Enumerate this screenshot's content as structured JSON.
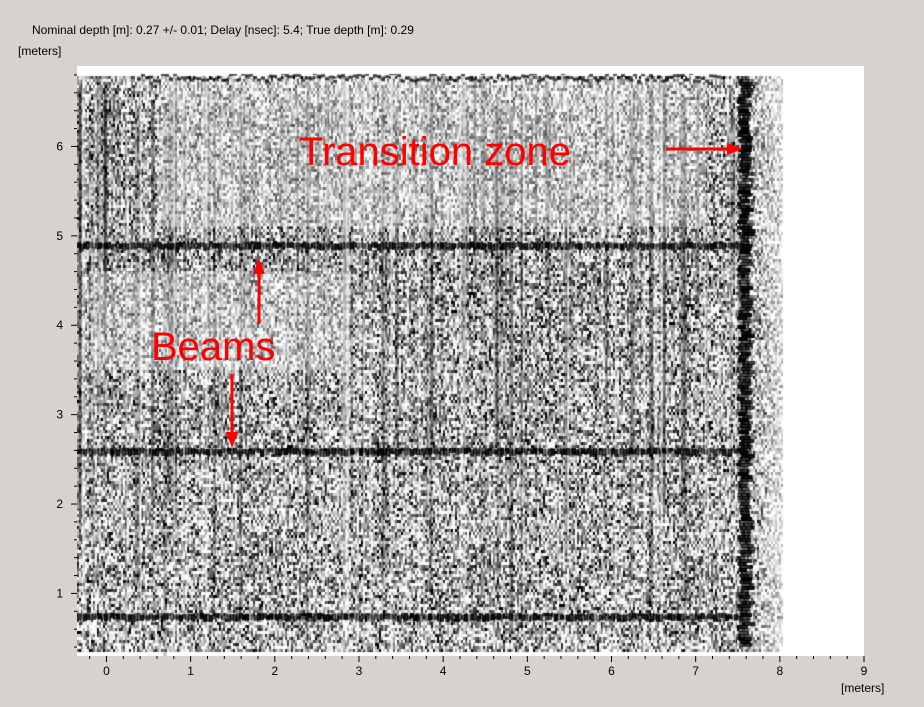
{
  "header": {
    "info_text": "Nominal depth [m]: 0.27 +/- 0.01;   Delay [nsec]: 5.4;   True depth [m]: 0.29"
  },
  "axes": {
    "y_unit": "[meters]",
    "x_unit": "[meters]",
    "x_ticks": [
      "0",
      "1",
      "2",
      "3",
      "4",
      "5",
      "6",
      "7",
      "8",
      "9"
    ],
    "y_ticks": [
      "1",
      "2",
      "3",
      "4",
      "5",
      "6"
    ],
    "x_range": [
      -0.35,
      9.0
    ],
    "y_range": [
      0.3,
      6.9
    ]
  },
  "annotations": {
    "color": "#ff0000",
    "transition_label": "Transition zone",
    "beams_label": "Beams"
  },
  "scan": {
    "beams_y": [
      4.9,
      2.6,
      0.75
    ],
    "wall_x": 7.55
  }
}
